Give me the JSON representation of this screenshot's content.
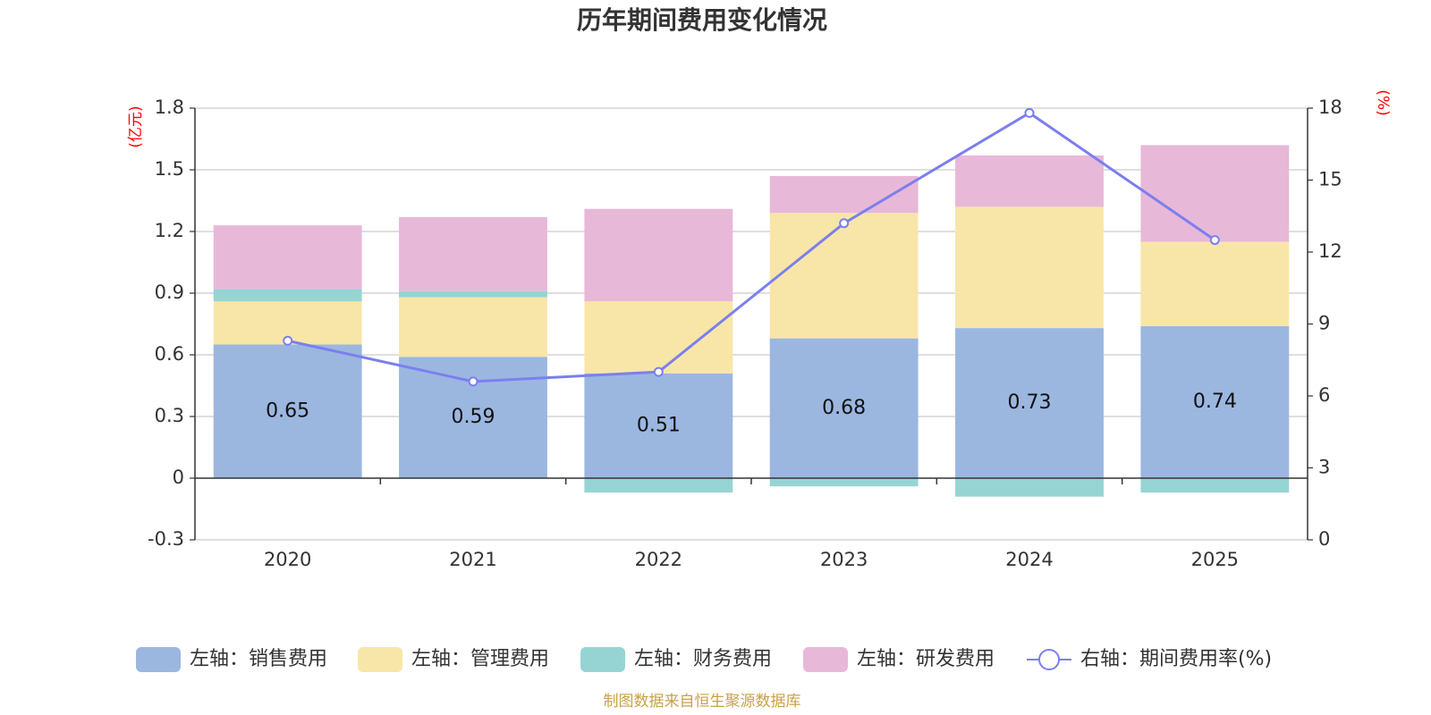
{
  "chart_data": {
    "type": "bar",
    "stacked": true,
    "title": "历年期间费用变化情况",
    "categories": [
      "2020",
      "2021",
      "2022",
      "2023",
      "2024",
      "2025"
    ],
    "left_axis": {
      "unit": "(亿元)",
      "ylim": [
        -0.3,
        1.8
      ],
      "ticks": [
        -0.3,
        0,
        0.3,
        0.6,
        0.9,
        1.2,
        1.5,
        1.8
      ],
      "tick_labels": [
        "-0.3",
        "0",
        "0.3",
        "0.6",
        "0.9",
        "1.2",
        "1.5",
        "1.8"
      ]
    },
    "right_axis": {
      "unit": "(%)",
      "ylim": [
        0,
        18
      ],
      "ticks": [
        0,
        3,
        6,
        9,
        12,
        15,
        18
      ],
      "tick_labels": [
        "0",
        "3",
        "6",
        "9",
        "12",
        "15",
        "18"
      ]
    },
    "series": [
      {
        "name": "左轴：销售费用",
        "type": "bar",
        "axis": "left",
        "color": "#9bb7e0",
        "values": [
          0.65,
          0.59,
          0.51,
          0.68,
          0.73,
          0.74
        ],
        "labels": [
          "0.65",
          "0.59",
          "0.51",
          "0.68",
          "0.73",
          "0.74"
        ]
      },
      {
        "name": "左轴：管理费用",
        "type": "bar",
        "axis": "left",
        "color": "#f8e6a8",
        "values": [
          0.21,
          0.29,
          0.35,
          0.61,
          0.59,
          0.41
        ]
      },
      {
        "name": "左轴：财务费用",
        "type": "bar",
        "axis": "left",
        "color": "#96d4d4",
        "values": [
          0.06,
          0.03,
          -0.07,
          -0.04,
          -0.09,
          -0.07
        ]
      },
      {
        "name": "左轴：研发费用",
        "type": "bar",
        "axis": "left",
        "color": "#e8b8d8",
        "values": [
          0.31,
          0.36,
          0.45,
          0.18,
          0.25,
          0.47
        ]
      },
      {
        "name": "右轴：期间费用率(%)",
        "type": "line",
        "axis": "right",
        "color": "#7b7fef",
        "values": [
          8.3,
          6.6,
          7.0,
          13.2,
          17.8,
          12.5
        ]
      }
    ],
    "source": "制图数据来自恒生聚源数据库"
  }
}
